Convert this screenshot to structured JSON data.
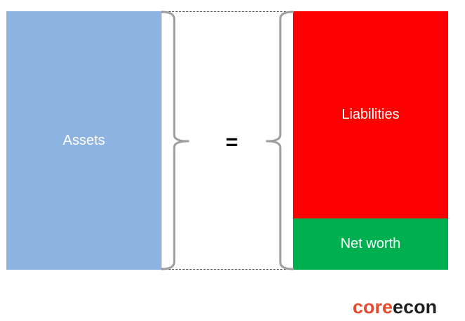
{
  "diagram": {
    "assets_label": "Assets",
    "liabilities_label": "Liabilities",
    "net_worth_label": "Net worth",
    "equals_sign": "=",
    "colors": {
      "assets": "#8db3e2",
      "liabilities": "#ff0000",
      "net_worth": "#00b050"
    }
  },
  "logo": {
    "part1": "core",
    "part2": "econ",
    "colors": {
      "part1": "#e64a2e",
      "part2": "#1f1f1f"
    }
  }
}
